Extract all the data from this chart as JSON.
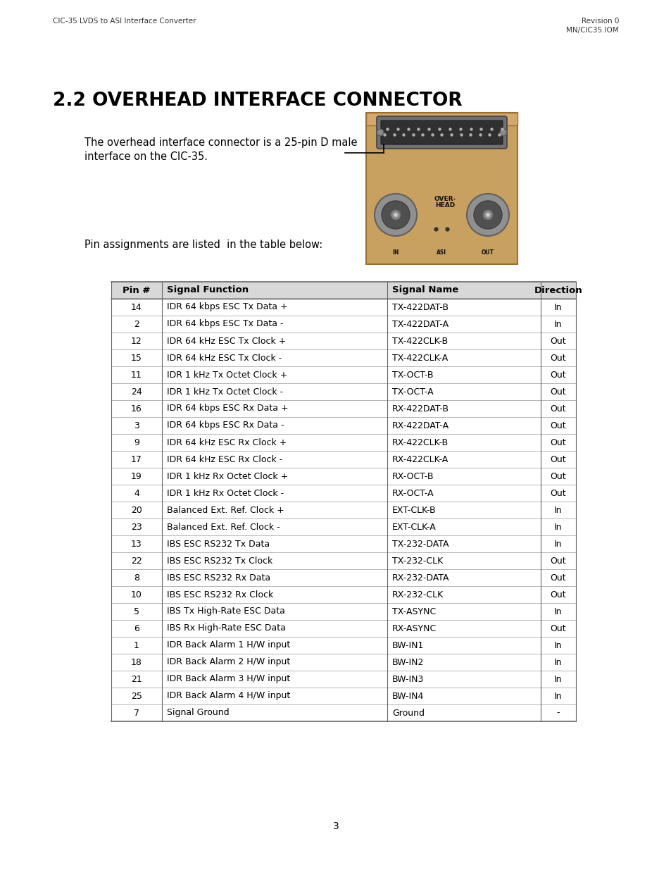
{
  "page_title_left": "CIC-35 LVDS to ASI Interface Converter",
  "page_title_right_line1": "Revision 0",
  "page_title_right_line2": "MN/CIC35.IOM",
  "section_title": "2.2 OVERHEAD INTERFACE CONNECTOR",
  "intro_text_line1": "The overhead interface connector is a 25-pin D male",
  "intro_text_line2": "interface on the CIC-35.",
  "pin_text": "Pin assignments are listed  in the table below:",
  "page_number": "3",
  "table_headers": [
    "Pin #",
    "Signal Function",
    "Signal Name",
    "Direction"
  ],
  "table_data": [
    [
      "14",
      "IDR 64 kbps ESC Tx Data +",
      "TX-422DAT-B",
      "In"
    ],
    [
      "2",
      "IDR 64 kbps ESC Tx Data -",
      "TX-422DAT-A",
      "In"
    ],
    [
      "12",
      "IDR 64 kHz ESC Tx Clock +",
      "TX-422CLK-B",
      "Out"
    ],
    [
      "15",
      "IDR 64 kHz ESC Tx Clock -",
      "TX-422CLK-A",
      "Out"
    ],
    [
      "11",
      "IDR 1 kHz Tx Octet Clock +",
      "TX-OCT-B",
      "Out"
    ],
    [
      "24",
      "IDR 1 kHz Tx Octet Clock -",
      "TX-OCT-A",
      "Out"
    ],
    [
      "16",
      "IDR 64 kbps ESC Rx Data +",
      "RX-422DAT-B",
      "Out"
    ],
    [
      "3",
      "IDR 64 kbps ESC Rx Data -",
      "RX-422DAT-A",
      "Out"
    ],
    [
      "9",
      "IDR 64 kHz ESC Rx Clock +",
      "RX-422CLK-B",
      "Out"
    ],
    [
      "17",
      "IDR 64 kHz ESC Rx Clock -",
      "RX-422CLK-A",
      "Out"
    ],
    [
      "19",
      "IDR 1 kHz Rx Octet Clock +",
      "RX-OCT-B",
      "Out"
    ],
    [
      "4",
      "IDR 1 kHz Rx Octet Clock -",
      "RX-OCT-A",
      "Out"
    ],
    [
      "20",
      "Balanced Ext. Ref. Clock +",
      "EXT-CLK-B",
      "In"
    ],
    [
      "23",
      "Balanced Ext. Ref. Clock -",
      "EXT-CLK-A",
      "In"
    ],
    [
      "13",
      "IBS ESC RS232 Tx Data",
      "TX-232-DATA",
      "In"
    ],
    [
      "22",
      "IBS ESC RS232 Tx Clock",
      "TX-232-CLK",
      "Out"
    ],
    [
      "8",
      "IBS ESC RS232 Rx Data",
      "RX-232-DATA",
      "Out"
    ],
    [
      "10",
      "IBS ESC RS232 Rx Clock",
      "RX-232-CLK",
      "Out"
    ],
    [
      "5",
      "IBS Tx High-Rate ESC Data",
      "TX-ASYNC",
      "In"
    ],
    [
      "6",
      "IBS Rx High-Rate ESC Data",
      "RX-ASYNC",
      "Out"
    ],
    [
      "1",
      "IDR Back Alarm 1 H/W input",
      "BW-IN1",
      "In"
    ],
    [
      "18",
      "IDR Back Alarm 2 H/W input",
      "BW-IN2",
      "In"
    ],
    [
      "21",
      "IDR Back Alarm 3 H/W input",
      "BW-IN3",
      "In"
    ],
    [
      "25",
      "IDR Back Alarm 4 H/W input",
      "BW-IN4",
      "In"
    ],
    [
      "7",
      "Signal Ground",
      "Ground",
      "-"
    ]
  ],
  "background_color": "#ffffff",
  "header_bg": "#d8d8d8",
  "row_bg": "#ffffff",
  "table_border_color": "#888888",
  "header_font_size": 9.5,
  "body_font_size": 9.0,
  "section_title_font_size": 19,
  "intro_font_size": 10.5,
  "small_font_size": 7.5
}
